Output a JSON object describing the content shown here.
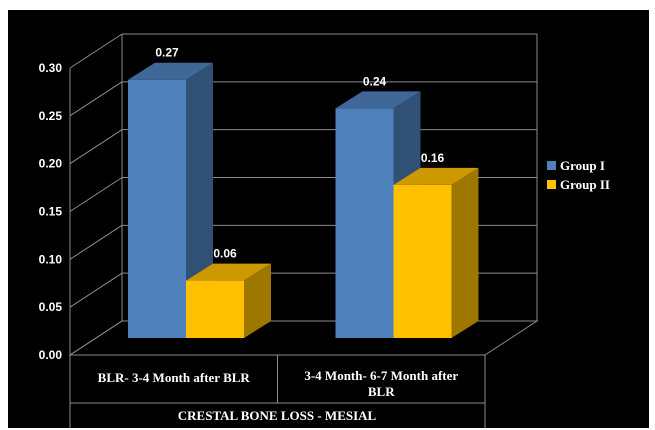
{
  "chart_data": {
    "type": "bar",
    "style": "3d-clustered-column",
    "background": "#000000",
    "title": "",
    "xlabel": "CRESTAL BONE LOSS - MESIAL",
    "ylabel": "",
    "ylim": [
      0,
      0.3
    ],
    "y_ticks": [
      "0.00",
      "0.05",
      "0.10",
      "0.15",
      "0.20",
      "0.25",
      "0.30"
    ],
    "grid": true,
    "legend_position": "right",
    "categories": [
      [
        "BLR- 3-4 Month after BLR"
      ],
      [
        "3-4 Month- 6-7 Month after",
        "BLR"
      ]
    ],
    "series": [
      {
        "name": "Group I",
        "values": [
          0.27,
          0.24
        ],
        "labels": [
          "0.27",
          "0.24"
        ],
        "color": "#4F81BD"
      },
      {
        "name": "Group II",
        "values": [
          0.06,
          0.16
        ],
        "labels": [
          "0.06",
          "0.16"
        ],
        "color": "#FFC000"
      }
    ]
  }
}
